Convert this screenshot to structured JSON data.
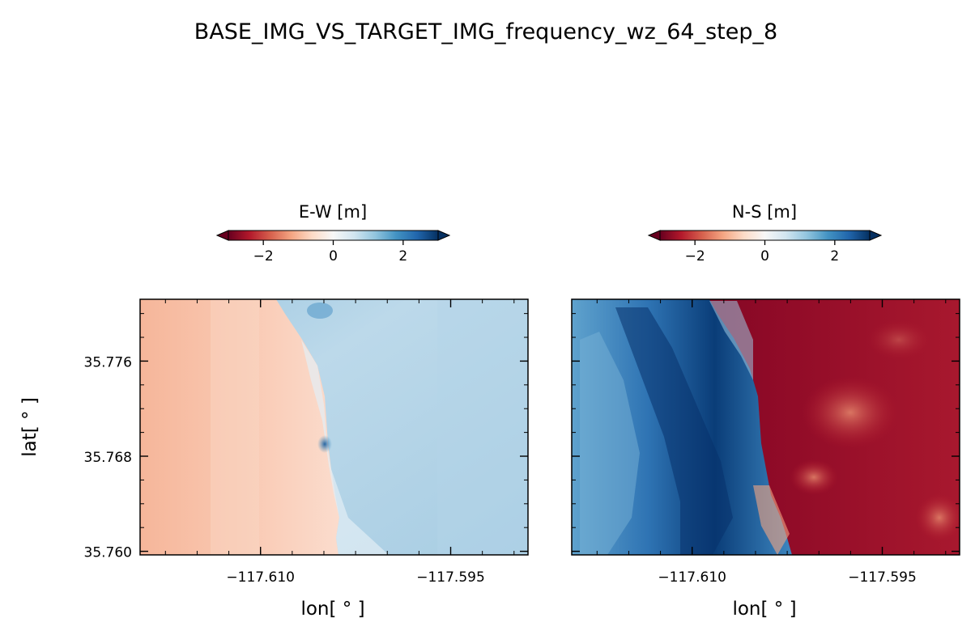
{
  "figure": {
    "suptitle": "BASE_IMG_VS_TARGET_IMG_frequency_wz_64_step_8"
  },
  "chart_data": [
    {
      "type": "heatmap",
      "panel": "left",
      "colorbar_label": "E-W [m]",
      "colormap": "RdBu",
      "colorbar_range": [
        -3,
        3
      ],
      "colorbar_ticks": [
        -2,
        0,
        2
      ],
      "colorbar_tick_labels": [
        "−2",
        "0",
        "2"
      ],
      "colorbar_extend": "both",
      "colorbar_position": "top",
      "xlabel": "lon[ ° ]",
      "ylabel": "lat[ ° ]",
      "xlim": [
        -117.6195,
        -117.5889
      ],
      "ylim": [
        35.7597,
        35.7812
      ],
      "xticks": [
        -117.61,
        -117.595
      ],
      "xtick_labels": [
        "−117.610",
        "−117.595"
      ],
      "yticks": [
        35.76,
        35.768,
        35.776
      ],
      "ytick_labels": [
        "35.760",
        "35.768",
        "35.776"
      ],
      "regions": [
        {
          "side": "west of fault",
          "value_m": -0.8
        },
        {
          "side": "east of fault",
          "value_m": 0.6
        }
      ]
    },
    {
      "type": "heatmap",
      "panel": "right",
      "colorbar_label": "N-S [m]",
      "colormap": "RdBu",
      "colorbar_range": [
        -3,
        3
      ],
      "colorbar_ticks": [
        -2,
        0,
        2
      ],
      "colorbar_tick_labels": [
        "−2",
        "0",
        "2"
      ],
      "colorbar_extend": "both",
      "colorbar_position": "top",
      "xlabel": "lon[ ° ]",
      "ylabel": "",
      "xlim": [
        -117.6195,
        -117.5889
      ],
      "ylim": [
        35.7597,
        35.7812
      ],
      "xticks": [
        -117.61,
        -117.595
      ],
      "xtick_labels": [
        "−117.610",
        "−117.595"
      ],
      "yticks": [
        35.76,
        35.768,
        35.776
      ],
      "ytick_labels": [
        "",
        "",
        ""
      ],
      "regions": [
        {
          "side": "west of fault",
          "value_m": 2.2
        },
        {
          "side": "east of fault",
          "value_m": -2.6
        }
      ]
    }
  ]
}
